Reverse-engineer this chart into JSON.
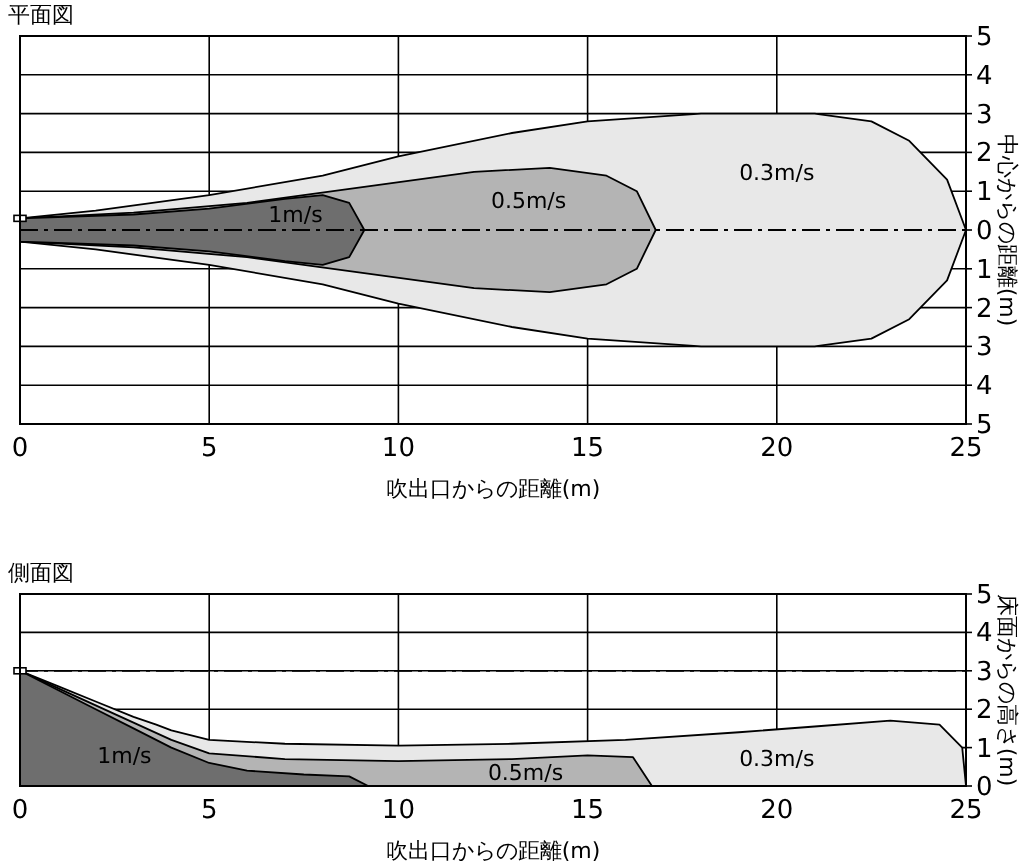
{
  "chart_data": [
    {
      "type": "area",
      "title": "平面図",
      "xlabel": "吹出口からの距離(m)",
      "ylabel": "中心からの距離(m)",
      "xlim": [
        0,
        25
      ],
      "xticks": [
        0,
        5,
        10,
        15,
        20,
        25
      ],
      "ylim": [
        -5,
        5
      ],
      "yticks": [
        {
          "value": 5,
          "label": "5"
        },
        {
          "value": 4,
          "label": "4"
        },
        {
          "value": 3,
          "label": "3"
        },
        {
          "value": 2,
          "label": "2"
        },
        {
          "value": 1,
          "label": "1"
        },
        {
          "value": 0,
          "label": "0"
        },
        {
          "value": -1,
          "label": "1"
        },
        {
          "value": -2,
          "label": "2"
        },
        {
          "value": -3,
          "label": "3"
        },
        {
          "value": -4,
          "label": "4"
        },
        {
          "value": -5,
          "label": "5"
        }
      ],
      "grid": true,
      "ref_lines": [
        {
          "axis": "y",
          "value": 0,
          "line_style": "dashed"
        }
      ],
      "series": [
        {
          "name": "0.3m/s",
          "color": "#e8e8e8",
          "x": [
            0,
            2,
            5,
            8,
            10,
            13,
            15,
            18,
            21,
            22.5,
            23.5,
            24.5,
            25
          ],
          "values": [
            0.3,
            0.5,
            0.9,
            1.4,
            1.9,
            2.5,
            2.8,
            3.0,
            3.0,
            2.8,
            2.3,
            1.3,
            0
          ]
        },
        {
          "color": "#e8e8e8",
          "x": [
            0,
            2,
            5,
            8,
            10,
            13,
            15,
            18,
            21,
            22.5,
            23.5,
            24.5,
            25
          ],
          "values": [
            -0.3,
            -0.5,
            -0.9,
            -1.4,
            -1.9,
            -2.5,
            -2.8,
            -3.0,
            -3.0,
            -2.8,
            -2.3,
            -1.3,
            0
          ]
        },
        {
          "name": "0.5m/s",
          "color": "#b4b4b4",
          "x": [
            0,
            3,
            6,
            9,
            12,
            14,
            15.5,
            16.3,
            16.8
          ],
          "values": [
            0.3,
            0.45,
            0.7,
            1.1,
            1.5,
            1.6,
            1.4,
            1.0,
            0
          ]
        },
        {
          "color": "#b4b4b4",
          "x": [
            0,
            3,
            6,
            9,
            12,
            14,
            15.5,
            16.3,
            16.8
          ],
          "values": [
            -0.3,
            -0.45,
            -0.7,
            -1.1,
            -1.5,
            -1.6,
            -1.4,
            -1.0,
            0
          ]
        },
        {
          "name": "1m/s",
          "color": "#6e6e6e",
          "x": [
            0,
            3,
            5,
            7,
            8,
            8.7,
            9.1
          ],
          "values": [
            0.3,
            0.4,
            0.55,
            0.8,
            0.9,
            0.7,
            0
          ]
        },
        {
          "color": "#6e6e6e",
          "x": [
            0,
            3,
            5,
            7,
            8,
            8.7,
            9.1
          ],
          "values": [
            -0.3,
            -0.4,
            -0.55,
            -0.8,
            -0.9,
            -0.7,
            0
          ]
        }
      ],
      "legend": false
    },
    {
      "type": "area",
      "title": "側面図",
      "xlabel": "吹出口からの距離(m)",
      "ylabel": "床面からの高さ(m)",
      "xlim": [
        0,
        25
      ],
      "xticks": [
        0,
        5,
        10,
        15,
        20,
        25
      ],
      "ylim": [
        0,
        5
      ],
      "yticks": [
        0,
        1,
        2,
        3,
        4,
        5
      ],
      "grid": true,
      "ref_lines": [
        {
          "axis": "y",
          "value": 3,
          "line_style": "dashed"
        }
      ],
      "series": [
        {
          "name": "0.3m/s",
          "color": "#e8e8e8",
          "x": [
            0,
            1,
            2,
            3,
            3.6,
            4,
            5,
            7,
            10,
            13,
            16,
            19,
            21,
            23,
            24.3,
            24.9,
            25
          ],
          "values": [
            3,
            2.6,
            2.2,
            1.8,
            1.6,
            1.45,
            1.2,
            1.1,
            1.05,
            1.1,
            1.2,
            1.4,
            1.55,
            1.7,
            1.6,
            1.0,
            0
          ]
        },
        {
          "name": "0.5m/s",
          "color": "#b4b4b4",
          "x": [
            0,
            1,
            2,
            3,
            4,
            5,
            7,
            10,
            13,
            15,
            16.2,
            16.7
          ],
          "values": [
            3,
            2.55,
            2.1,
            1.65,
            1.2,
            0.85,
            0.7,
            0.65,
            0.7,
            0.8,
            0.75,
            0
          ]
        },
        {
          "name": "1m/s",
          "color": "#6e6e6e",
          "x": [
            0,
            1,
            2,
            3,
            4,
            5,
            6,
            7.5,
            8.7,
            9.2
          ],
          "values": [
            3,
            2.5,
            2.0,
            1.5,
            1.0,
            0.6,
            0.4,
            0.3,
            0.25,
            0
          ]
        }
      ],
      "legend": false
    }
  ]
}
